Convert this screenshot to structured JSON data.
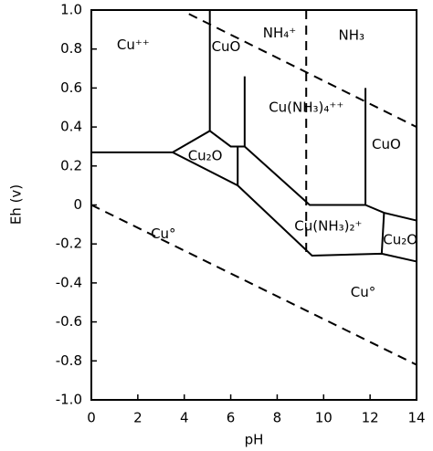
{
  "chart_data": {
    "type": "phase-diagram",
    "xlabel": "pH",
    "ylabel": "Eh (v)",
    "xlim": [
      0,
      14
    ],
    "ylim": [
      -1,
      1
    ],
    "xticks": [
      0,
      2,
      4,
      6,
      8,
      10,
      12,
      14
    ],
    "yticks": [
      {
        "value": 1,
        "label": "1.0"
      },
      0.8,
      0.6,
      0.4,
      0.2,
      0,
      -0.2,
      -0.4,
      -0.6,
      -0.8,
      {
        "value": -1,
        "label": "-1.0"
      }
    ],
    "color": "#000000",
    "boundaries": [
      {
        "style": "solid",
        "x": [
          0,
          3.5,
          5.1,
          6.0,
          6.6
        ],
        "y": [
          0.27,
          0.27,
          0.38,
          0.3,
          0.3
        ]
      },
      {
        "style": "solid",
        "x": [
          3.5,
          6.3,
          6.3
        ],
        "y": [
          0.27,
          0.1,
          0.3
        ]
      },
      {
        "style": "solid",
        "x": [
          5.1,
          5.1
        ],
        "y": [
          1.0,
          0.38
        ]
      },
      {
        "style": "solid",
        "x": [
          6.6,
          6.6
        ],
        "y": [
          0.3,
          0.66
        ]
      },
      {
        "style": "solid",
        "x": [
          6.6,
          9.4,
          11.8,
          11.8
        ],
        "y": [
          0.3,
          0.0,
          0.0,
          0.6
        ]
      },
      {
        "style": "solid",
        "x": [
          6.3,
          9.5,
          12.5,
          14
        ],
        "y": [
          0.1,
          -0.26,
          -0.25,
          -0.29
        ]
      },
      {
        "style": "solid",
        "x": [
          11.8,
          12.6,
          14
        ],
        "y": [
          0.0,
          -0.04,
          -0.08
        ]
      },
      {
        "style": "solid",
        "x": [
          12.6,
          12.5
        ],
        "y": [
          -0.04,
          -0.25
        ]
      },
      {
        "style": "dashed",
        "x": [
          9.25,
          9.25
        ],
        "y": [
          1.0,
          -0.26
        ]
      },
      {
        "style": "dashed",
        "x": [
          4.2,
          14
        ],
        "y": [
          0.98,
          0.4
        ]
      },
      {
        "style": "dashed",
        "x": [
          0,
          14
        ],
        "y": [
          0.0,
          -0.82
        ]
      }
    ],
    "labels": [
      {
        "text": "Cu⁺⁺",
        "x": 1.8,
        "y": 0.82
      },
      {
        "text": "CuO",
        "x": 5.8,
        "y": 0.81
      },
      {
        "text": "NH₄⁺",
        "x": 8.1,
        "y": 0.88
      },
      {
        "text": "NH₃",
        "x": 11.2,
        "y": 0.87
      },
      {
        "text": "Cu(NH₃)₄⁺⁺",
        "x": 9.25,
        "y": 0.5
      },
      {
        "text": "CuO",
        "x": 12.7,
        "y": 0.31
      },
      {
        "text": "Cu₂O",
        "x": 4.9,
        "y": 0.25
      },
      {
        "text": "Cu(NH₃)₂⁺",
        "x": 10.2,
        "y": -0.11
      },
      {
        "text": "Cu₂O",
        "x": 13.3,
        "y": -0.18
      },
      {
        "text": "Cu°",
        "x": 3.1,
        "y": -0.15
      },
      {
        "text": "Cu°",
        "x": 11.7,
        "y": -0.45
      }
    ]
  }
}
